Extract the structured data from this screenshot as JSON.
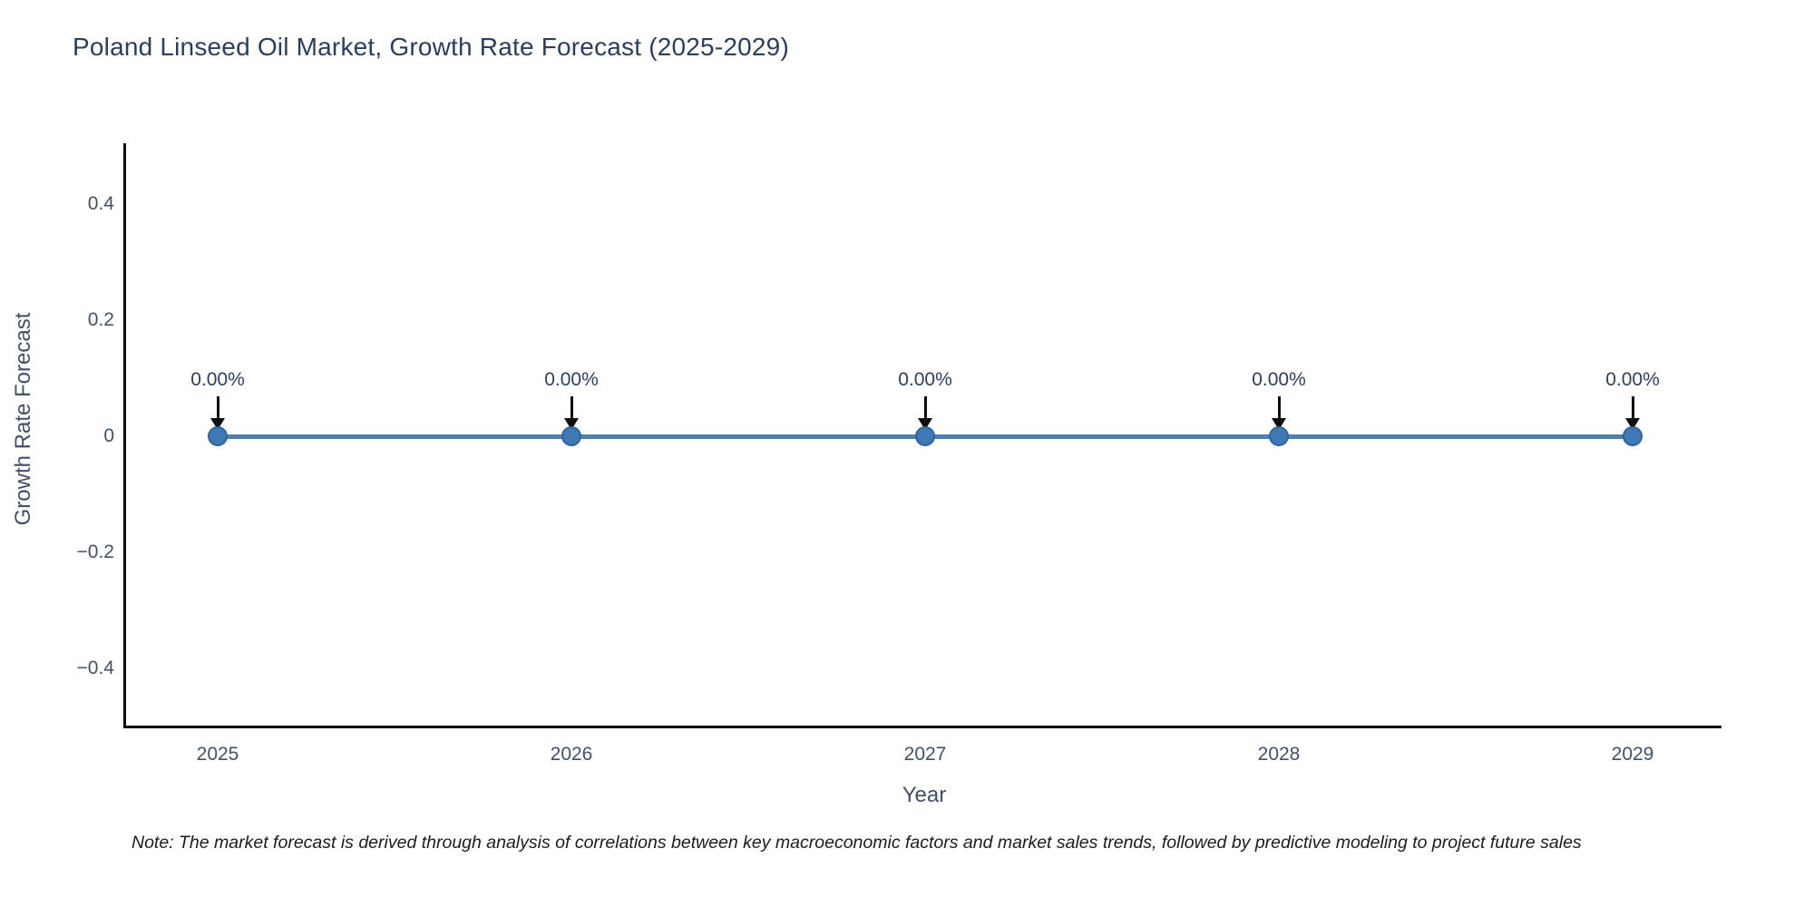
{
  "title": "Poland Linseed Oil Market, Growth Rate Forecast (2025-2029)",
  "footnote": "Note: The market forecast is derived through analysis of correlations between key macroeconomic factors and market sales trends, followed by predictive modeling to project future sales",
  "colors": {
    "title_text": "#2a3f5f",
    "tick_text": "#42506b",
    "axis_line": "#0d0d0d",
    "series_line": "#4e7fb1",
    "marker_fill": "#3e78b5",
    "marker_edge": "#2f649e",
    "annotation_text": "#2a3f5f",
    "annotation_arrow": "#0d0d0d",
    "background": "#ffffff"
  },
  "chart_data": {
    "type": "line",
    "title": "Poland Linseed Oil Market, Growth Rate Forecast (2025-2029)",
    "xlabel": "Year",
    "ylabel": "Growth Rate Forecast",
    "categories": [
      "2025",
      "2026",
      "2027",
      "2028",
      "2029"
    ],
    "series": [
      {
        "name": "Growth Rate Forecast",
        "values": [
          0,
          0,
          0,
          0,
          0
        ]
      }
    ],
    "point_labels": [
      "0.00%",
      "0.00%",
      "0.00%",
      "0.00%",
      "0.00%"
    ],
    "yticks": [
      {
        "v": 0.4,
        "label": "0.4"
      },
      {
        "v": 0.2,
        "label": "0.2"
      },
      {
        "v": 0,
        "label": "0"
      },
      {
        "v": -0.2,
        "label": "−0.2"
      },
      {
        "v": -0.4,
        "label": "−0.4"
      }
    ],
    "ylim": [
      -0.5,
      0.5
    ],
    "grid": false,
    "legend": "none",
    "marker_style": "circle",
    "annotation_arrows": "down"
  }
}
